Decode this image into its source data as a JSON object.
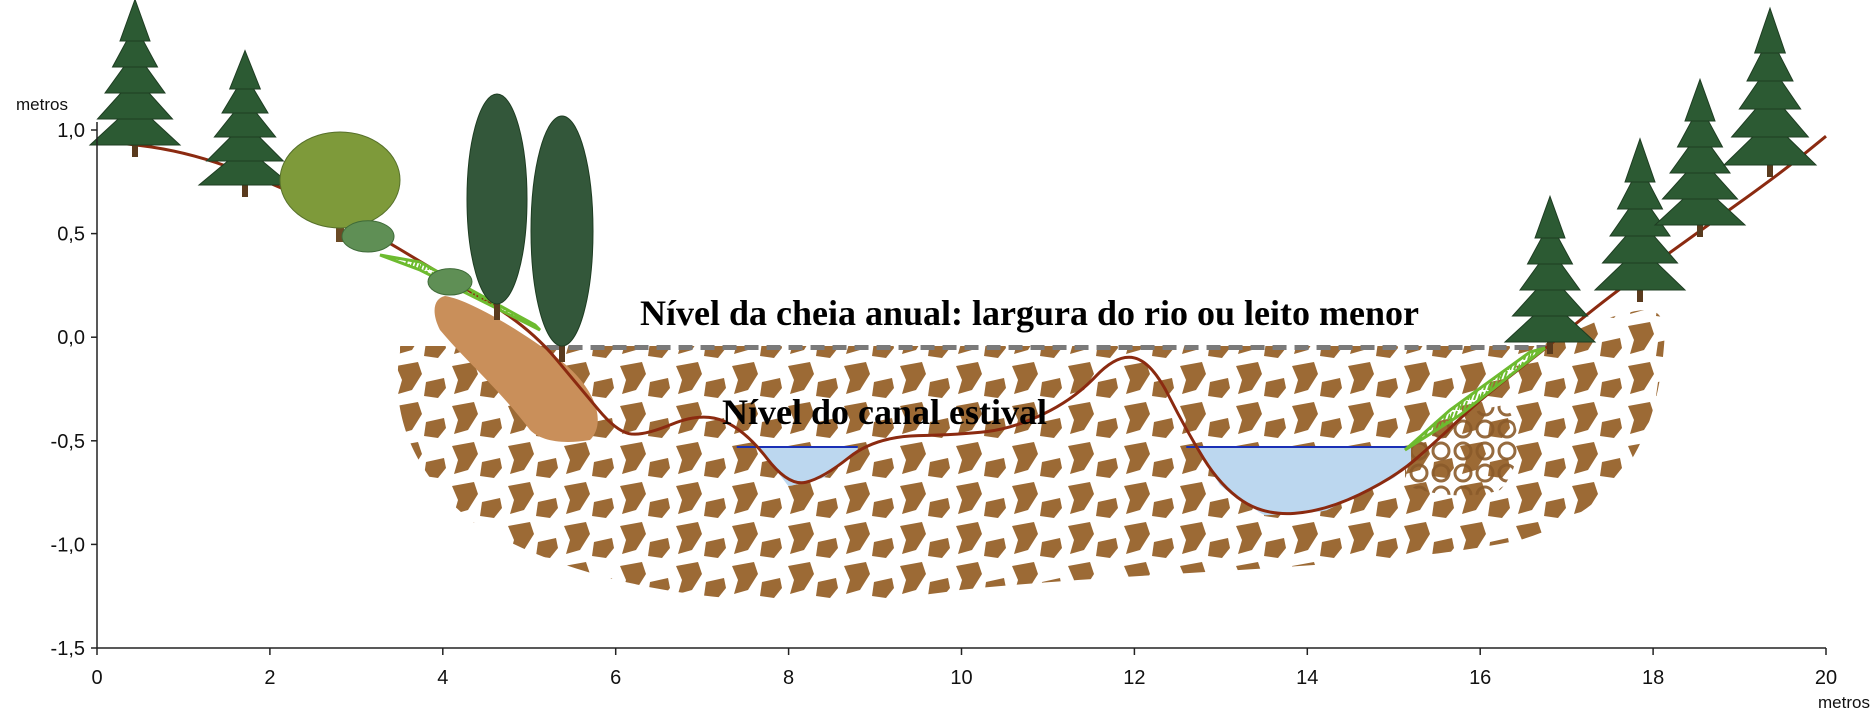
{
  "chart_data": {
    "type": "diagram",
    "y_unit": "metros",
    "x_unit": "metros",
    "xlim": [
      0,
      20
    ],
    "ylim": [
      -1.5,
      1.0
    ],
    "x_ticks": [
      "0",
      "2",
      "4",
      "6",
      "8",
      "10",
      "12",
      "14",
      "16",
      "18",
      "20"
    ],
    "x_tick_values": [
      0,
      2,
      4,
      6,
      8,
      10,
      12,
      14,
      16,
      18,
      20
    ],
    "y_ticks": [
      "1,0",
      "0,5",
      "0,0",
      "-0,5",
      "-1,0",
      "-1,5"
    ],
    "y_tick_values": [
      1.0,
      0.5,
      0.0,
      -0.5,
      -1.0,
      -1.5
    ],
    "annotations": {
      "flood_level": "Nível da cheia anual: largura do rio ou leito menor",
      "summer_channel": "Nível do canal estival"
    },
    "flood_level_y": -0.05,
    "flood_level_x": [
      5.2,
      16.8
    ],
    "summer_level_y": -0.53,
    "pools": [
      {
        "x": [
          7.4,
          8.8
        ],
        "y": -0.53
      },
      {
        "x": [
          12.6,
          15.2
        ],
        "y": -0.53
      }
    ],
    "bank_profile": [
      [
        0.0,
        0.95
      ],
      [
        1.0,
        0.9
      ],
      [
        2.0,
        0.75
      ],
      [
        3.0,
        0.55
      ],
      [
        4.0,
        0.3
      ],
      [
        5.0,
        0.05
      ],
      [
        5.6,
        -0.25
      ],
      [
        6.0,
        -0.45
      ],
      [
        6.3,
        -0.48
      ],
      [
        7.0,
        -0.36
      ],
      [
        7.5,
        -0.45
      ],
      [
        8.0,
        -0.72
      ],
      [
        8.4,
        -0.68
      ],
      [
        9.0,
        -0.48
      ],
      [
        10.0,
        -0.47
      ],
      [
        10.6,
        -0.44
      ],
      [
        11.3,
        -0.3
      ],
      [
        11.8,
        -0.08
      ],
      [
        12.2,
        -0.12
      ],
      [
        12.6,
        -0.45
      ],
      [
        13.0,
        -0.72
      ],
      [
        13.5,
        -0.86
      ],
      [
        14.2,
        -0.84
      ],
      [
        15.0,
        -0.68
      ],
      [
        15.5,
        -0.5
      ],
      [
        16.0,
        -0.3
      ],
      [
        16.8,
        -0.04
      ],
      [
        17.5,
        0.2
      ],
      [
        18.5,
        0.5
      ],
      [
        19.5,
        0.8
      ],
      [
        20.0,
        0.97
      ]
    ],
    "colors": {
      "bank_line": "#8b2a10",
      "gravel": "#9c6a35",
      "bank_soil": "#c98f5a",
      "water": "#bcd7ef",
      "water_line": "#1a2fb5",
      "flood_line": "#7a7a7a",
      "tree_dark": "#2c5a33",
      "tree_light": "#7e9a3a",
      "grass": "#6dbb2f"
    }
  }
}
